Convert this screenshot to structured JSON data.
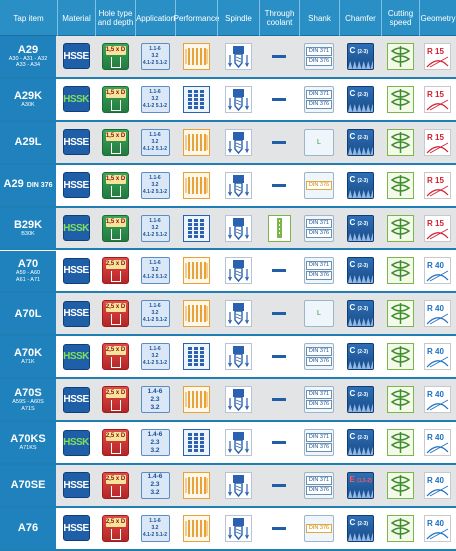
{
  "headers": [
    "Tap item",
    "Material",
    "Hole type and depth",
    "Application",
    "Performance",
    "Spindle",
    "Through coolant",
    "Shank",
    "Chamfer",
    "Cutting speed",
    "Geometry"
  ],
  "rows": [
    {
      "name": "A29",
      "din": "",
      "sub1": "A30 - A31 - A32",
      "sub2": "A33 - A34",
      "material": "HSSE",
      "hole": "1,5 x D",
      "hole_color": "green",
      "app": [
        "1.1-6",
        "3.2",
        "4.1-2 5.1-2"
      ],
      "perf": "bars",
      "spindle": "tapered",
      "coolant": "none",
      "shank": [
        "DIN 371",
        "DIN 376"
      ],
      "shank_type": "din",
      "chamfer": "C",
      "chamfer_sub": "(2-3)",
      "speed": "wave",
      "geometry": "R 15",
      "geo_color": "red"
    },
    {
      "name": "A29K",
      "din": "",
      "sub1": "A30K",
      "sub2": "",
      "material": "HSSK",
      "hole": "1,5 x D",
      "hole_color": "green",
      "app": [
        "1.1-6",
        "3.2",
        "4.1-2 5.1-2"
      ],
      "perf": "blocks",
      "spindle": "tapered",
      "coolant": "none",
      "shank": [
        "DIN 371",
        "DIN 376"
      ],
      "shank_type": "din",
      "chamfer": "C",
      "chamfer_sub": "(2-3)",
      "speed": "wave",
      "geometry": "R 15",
      "geo_color": "red"
    },
    {
      "name": "A29L",
      "din": "",
      "sub1": "",
      "sub2": "",
      "material": "HSSE",
      "hole": "1,5 x D",
      "hole_color": "green",
      "app": [
        "1.1-6",
        "3.2",
        "4.1-2 5.1-2"
      ],
      "perf": "bars",
      "spindle": "tapered",
      "coolant": "none",
      "shank": [
        "L"
      ],
      "shank_type": "long",
      "chamfer": "C",
      "chamfer_sub": "(2-3)",
      "speed": "wave",
      "geometry": "R 15",
      "geo_color": "red"
    },
    {
      "name": "A29",
      "din": "DIN 376",
      "sub1": "",
      "sub2": "",
      "material": "HSSE",
      "hole": "1,5 x D",
      "hole_color": "green",
      "app": [
        "1.1-6",
        "3.2",
        "4.1-2 5.1-2"
      ],
      "perf": "bars",
      "spindle": "tapered",
      "coolant": "none",
      "shank": [
        "DIN 376"
      ],
      "shank_type": "din376",
      "chamfer": "C",
      "chamfer_sub": "(2-3)",
      "speed": "wave",
      "geometry": "R 15",
      "geo_color": "red"
    },
    {
      "name": "B29K",
      "din": "",
      "sub1": "B30K",
      "sub2": "",
      "material": "HSSK",
      "hole": "1,5 x D",
      "hole_color": "green",
      "app": [
        "1.1-6",
        "3.2",
        "4.1-2 5.1-2"
      ],
      "perf": "blocks",
      "spindle": "tapered",
      "coolant": "yes",
      "shank": [
        "DIN 371",
        "DIN 376"
      ],
      "shank_type": "din",
      "chamfer": "C",
      "chamfer_sub": "(2-3)",
      "speed": "wave",
      "geometry": "R 15",
      "geo_color": "red"
    },
    {
      "name": "A70",
      "din": "",
      "sub1": "A59 - A60",
      "sub2": "A61 - A71",
      "material": "HSSE",
      "hole": "2,5 x D",
      "hole_color": "red",
      "app": [
        "1.1-6",
        "3.2",
        "4.1-2 5.1-2"
      ],
      "perf": "bars",
      "spindle": "tapered",
      "coolant": "none",
      "shank": [
        "DIN 371",
        "DIN 376"
      ],
      "shank_type": "din",
      "chamfer": "C",
      "chamfer_sub": "(2-3)",
      "speed": "wave",
      "geometry": "R 40",
      "geo_color": "blue"
    },
    {
      "name": "A70L",
      "din": "",
      "sub1": "",
      "sub2": "",
      "material": "HSSE",
      "hole": "2,5 x D",
      "hole_color": "red",
      "app": [
        "1.1-6",
        "3.2",
        "4.1-2 5.1-2"
      ],
      "perf": "bars",
      "spindle": "tapered",
      "coolant": "none",
      "shank": [
        "L"
      ],
      "shank_type": "long",
      "chamfer": "C",
      "chamfer_sub": "(2-3)",
      "speed": "wave",
      "geometry": "R 40",
      "geo_color": "blue"
    },
    {
      "name": "A70K",
      "din": "",
      "sub1": "A71K",
      "sub2": "",
      "material": "HSSK",
      "hole": "2,5 x D",
      "hole_color": "red",
      "app": [
        "1.1-6",
        "3.2",
        "4.1-2 5.1-2"
      ],
      "perf": "blocks",
      "spindle": "tapered",
      "coolant": "none",
      "shank": [
        "DIN 371",
        "DIN 376"
      ],
      "shank_type": "din",
      "chamfer": "C",
      "chamfer_sub": "(2-3)",
      "speed": "wave",
      "geometry": "R 40",
      "geo_color": "blue"
    },
    {
      "name": "A70S",
      "din": "",
      "sub1": "A59S - A60S",
      "sub2": "A71S",
      "material": "HSSE",
      "hole": "2,5 x D",
      "hole_color": "red",
      "app": [
        "1.4-6",
        "2.3",
        "3.2"
      ],
      "perf": "bars",
      "spindle": "tapered",
      "coolant": "none",
      "shank": [
        "DIN 371",
        "DIN 376"
      ],
      "shank_type": "din",
      "chamfer": "C",
      "chamfer_sub": "(2-3)",
      "speed": "wave",
      "geometry": "R 40",
      "geo_color": "blue"
    },
    {
      "name": "A70KS",
      "din": "",
      "sub1": "A71KS",
      "sub2": "",
      "material": "HSSK",
      "hole": "2,5 x D",
      "hole_color": "red",
      "app": [
        "1.4-6",
        "2.3",
        "3.2"
      ],
      "perf": "blocks",
      "spindle": "tapered",
      "coolant": "none",
      "shank": [
        "DIN 371",
        "DIN 376"
      ],
      "shank_type": "din",
      "chamfer": "C",
      "chamfer_sub": "(2-3)",
      "speed": "wave",
      "geometry": "R 40",
      "geo_color": "blue"
    },
    {
      "name": "A70SE",
      "din": "",
      "sub1": "",
      "sub2": "",
      "material": "HSSE",
      "hole": "2,5 x D",
      "hole_color": "red",
      "app": [
        "1.4-6",
        "2.3",
        "3.2"
      ],
      "perf": "bars",
      "spindle": "tapered",
      "coolant": "none",
      "shank": [
        "DIN 371",
        "DIN 376"
      ],
      "shank_type": "din",
      "chamfer": "E",
      "chamfer_sub": "(1,5-2)",
      "speed": "wave",
      "geometry": "R 40",
      "geo_color": "blue"
    },
    {
      "name": "A76",
      "din": "",
      "sub1": "",
      "sub2": "",
      "material": "HSSE",
      "hole": "2,5 x D",
      "hole_color": "red",
      "app": [
        "1.1-6",
        "3.2",
        "4.1-2 5.1-2"
      ],
      "perf": "bars",
      "spindle": "tapered",
      "coolant": "none",
      "shank": [
        "DIN 376"
      ],
      "shank_type": "din376",
      "chamfer": "C",
      "chamfer_sub": "(2-3)",
      "speed": "wave",
      "geometry": "R 40",
      "geo_color": "blue"
    }
  ],
  "colors": {
    "header_bg": "#2a8fc4",
    "tap_bg": "#1f82bd",
    "row_alt": "#e3e4e5",
    "material_bg": "#1f5fa8",
    "hssk_text": "#7fe05a",
    "hole_green": "#2f8f4c",
    "hole_red": "#c93030",
    "geometry_red": "#d21f2f",
    "geometry_blue": "#1f6fc4"
  }
}
